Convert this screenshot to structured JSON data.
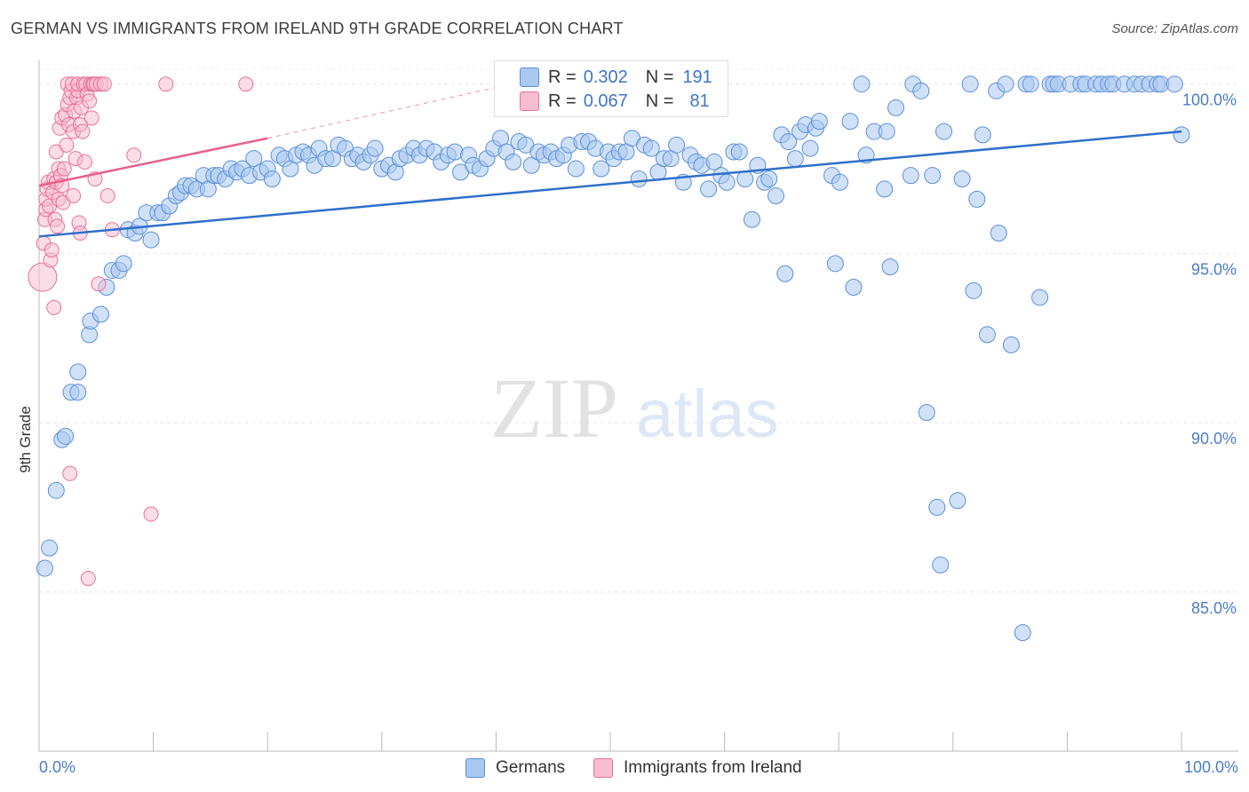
{
  "header": {
    "title": "GERMAN VS IMMIGRANTS FROM IRELAND 9TH GRADE CORRELATION CHART",
    "source": "Source: ZipAtlas.com"
  },
  "legend": {
    "german": {
      "r_label": "R =",
      "r_value": "0.302",
      "n_label": "N =",
      "n_value": "191",
      "name": "Germans"
    },
    "ireland": {
      "r_label": "R =",
      "r_value": "0.067",
      "n_label": "N =",
      "n_value": "81",
      "name": "Immigrants from Ireland"
    }
  },
  "watermark": {
    "zip": "ZIP",
    "atlas": "atlas"
  },
  "colors": {
    "blue": "#5b8fd9",
    "blue_fill": "#aac8f0",
    "pink": "#e8719a",
    "pink_fill": "#f6bcd0",
    "trend_blue": "#2e6fcc",
    "trend_pink": "#e8608a",
    "tick_text": "#4a7cc9"
  },
  "chart_data": {
    "type": "scatter",
    "title": "GERMAN VS IMMIGRANTS FROM IRELAND 9TH GRADE CORRELATION CHART",
    "xlabel": "",
    "ylabel": "9th Grade",
    "xlim": [
      0,
      100
    ],
    "ylim": [
      80.3,
      100.7
    ],
    "x_tick_labels": [
      "0.0%",
      "100.0%"
    ],
    "y_tick_labels": [
      {
        "value": 100,
        "label": "100.0%"
      },
      {
        "value": 95,
        "label": "95.0%"
      },
      {
        "value": 90,
        "label": "90.0%"
      },
      {
        "value": 85,
        "label": "85.0%"
      }
    ],
    "grid": true,
    "series": [
      {
        "name": "Germans",
        "trend": {
          "x": [
            0,
            100
          ],
          "y": [
            95.5,
            98.6
          ]
        },
        "points": [
          [
            0.5,
            85.7
          ],
          [
            0.9,
            86.3
          ],
          [
            1.5,
            88.0
          ],
          [
            2.0,
            89.5
          ],
          [
            2.3,
            89.6
          ],
          [
            2.8,
            90.9
          ],
          [
            3.4,
            90.9
          ],
          [
            3.4,
            91.5
          ],
          [
            4.4,
            92.6
          ],
          [
            4.5,
            93.0
          ],
          [
            5.4,
            93.2
          ],
          [
            5.9,
            94.0
          ],
          [
            6.4,
            94.5
          ],
          [
            7.0,
            94.5
          ],
          [
            7.4,
            94.7
          ],
          [
            7.8,
            95.7
          ],
          [
            8.4,
            95.6
          ],
          [
            8.8,
            95.8
          ],
          [
            9.4,
            96.2
          ],
          [
            9.8,
            95.4
          ],
          [
            10.4,
            96.2
          ],
          [
            10.8,
            96.2
          ],
          [
            11.4,
            96.4
          ],
          [
            12.0,
            96.7
          ],
          [
            12.4,
            96.8
          ],
          [
            12.8,
            97.0
          ],
          [
            13.3,
            97.0
          ],
          [
            13.8,
            96.9
          ],
          [
            14.4,
            97.3
          ],
          [
            14.8,
            96.9
          ],
          [
            15.3,
            97.3
          ],
          [
            15.7,
            97.3
          ],
          [
            16.3,
            97.2
          ],
          [
            16.8,
            97.5
          ],
          [
            17.3,
            97.4
          ],
          [
            17.8,
            97.5
          ],
          [
            18.4,
            97.3
          ],
          [
            18.8,
            97.8
          ],
          [
            19.4,
            97.4
          ],
          [
            20.0,
            97.5
          ],
          [
            20.4,
            97.2
          ],
          [
            21.0,
            97.9
          ],
          [
            21.5,
            97.8
          ],
          [
            22.0,
            97.5
          ],
          [
            22.5,
            97.9
          ],
          [
            23.1,
            98.0
          ],
          [
            23.6,
            97.9
          ],
          [
            24.1,
            97.6
          ],
          [
            24.5,
            98.1
          ],
          [
            25.1,
            97.8
          ],
          [
            25.7,
            97.8
          ],
          [
            26.2,
            98.2
          ],
          [
            26.8,
            98.1
          ],
          [
            27.4,
            97.8
          ],
          [
            27.9,
            97.9
          ],
          [
            28.4,
            97.7
          ],
          [
            29.0,
            97.9
          ],
          [
            29.4,
            98.1
          ],
          [
            30.0,
            97.5
          ],
          [
            30.6,
            97.6
          ],
          [
            31.2,
            97.4
          ],
          [
            31.6,
            97.8
          ],
          [
            32.2,
            97.9
          ],
          [
            32.8,
            98.1
          ],
          [
            33.3,
            97.9
          ],
          [
            33.9,
            98.1
          ],
          [
            34.6,
            98.0
          ],
          [
            35.2,
            97.7
          ],
          [
            35.8,
            97.9
          ],
          [
            36.4,
            98.0
          ],
          [
            36.9,
            97.4
          ],
          [
            37.6,
            97.9
          ],
          [
            38.0,
            97.6
          ],
          [
            38.6,
            97.5
          ],
          [
            39.2,
            97.8
          ],
          [
            39.8,
            98.1
          ],
          [
            40.4,
            98.4
          ],
          [
            40.9,
            98.0
          ],
          [
            41.5,
            97.7
          ],
          [
            42.0,
            98.3
          ],
          [
            42.6,
            98.2
          ],
          [
            43.1,
            97.6
          ],
          [
            43.7,
            98.0
          ],
          [
            44.2,
            97.9
          ],
          [
            44.8,
            98.0
          ],
          [
            45.3,
            97.8
          ],
          [
            45.9,
            97.9
          ],
          [
            46.4,
            98.2
          ],
          [
            47.0,
            97.5
          ],
          [
            47.5,
            98.3
          ],
          [
            48.1,
            98.3
          ],
          [
            48.7,
            98.1
          ],
          [
            49.2,
            97.5
          ],
          [
            49.8,
            98.0
          ],
          [
            50.3,
            97.8
          ],
          [
            50.8,
            98.0
          ],
          [
            51.4,
            98.0
          ],
          [
            51.9,
            98.4
          ],
          [
            52.5,
            97.2
          ],
          [
            53.0,
            98.2
          ],
          [
            53.6,
            98.1
          ],
          [
            54.2,
            97.4
          ],
          [
            54.7,
            97.8
          ],
          [
            55.3,
            97.8
          ],
          [
            55.8,
            98.2
          ],
          [
            56.4,
            97.1
          ],
          [
            57.0,
            97.9
          ],
          [
            57.5,
            97.7
          ],
          [
            58.0,
            97.6
          ],
          [
            58.6,
            96.9
          ],
          [
            59.1,
            97.7
          ],
          [
            59.7,
            97.3
          ],
          [
            60.2,
            97.1
          ],
          [
            60.8,
            98.0
          ],
          [
            61.3,
            98.0
          ],
          [
            61.8,
            97.2
          ],
          [
            62.4,
            96.0
          ],
          [
            62.9,
            97.6
          ],
          [
            63.5,
            97.1
          ],
          [
            63.9,
            97.2
          ],
          [
            64.5,
            96.7
          ],
          [
            65.0,
            98.5
          ],
          [
            65.3,
            94.4
          ],
          [
            65.6,
            98.3
          ],
          [
            66.2,
            97.8
          ],
          [
            66.6,
            98.6
          ],
          [
            67.1,
            98.8
          ],
          [
            67.5,
            98.1
          ],
          [
            68.0,
            98.7
          ],
          [
            68.3,
            98.9
          ],
          [
            69.4,
            97.3
          ],
          [
            69.7,
            94.7
          ],
          [
            70.1,
            97.1
          ],
          [
            71.0,
            98.9
          ],
          [
            71.3,
            94.0
          ],
          [
            72.0,
            100.0
          ],
          [
            72.4,
            97.9
          ],
          [
            73.1,
            98.6
          ],
          [
            74.0,
            96.9
          ],
          [
            74.2,
            98.6
          ],
          [
            74.5,
            94.6
          ],
          [
            75.0,
            99.3
          ],
          [
            76.3,
            97.3
          ],
          [
            76.5,
            100.0
          ],
          [
            77.2,
            99.8
          ],
          [
            77.7,
            90.3
          ],
          [
            78.2,
            97.3
          ],
          [
            78.6,
            87.5
          ],
          [
            78.9,
            85.8
          ],
          [
            79.2,
            98.6
          ],
          [
            80.4,
            87.7
          ],
          [
            80.8,
            97.2
          ],
          [
            81.5,
            100.0
          ],
          [
            81.8,
            93.9
          ],
          [
            82.1,
            96.6
          ],
          [
            82.6,
            98.5
          ],
          [
            83.0,
            92.6
          ],
          [
            83.8,
            99.8
          ],
          [
            84.0,
            95.6
          ],
          [
            84.6,
            100.0
          ],
          [
            85.1,
            92.3
          ],
          [
            86.1,
            83.8
          ],
          [
            86.4,
            100.0
          ],
          [
            86.8,
            100.0
          ],
          [
            87.6,
            93.7
          ],
          [
            88.5,
            100.0
          ],
          [
            88.8,
            100.0
          ],
          [
            89.2,
            100.0
          ],
          [
            90.3,
            100.0
          ],
          [
            91.2,
            100.0
          ],
          [
            91.6,
            100.0
          ],
          [
            92.5,
            100.0
          ],
          [
            93.0,
            100.0
          ],
          [
            93.6,
            100.0
          ],
          [
            94.0,
            100.0
          ],
          [
            95.0,
            100.0
          ],
          [
            95.9,
            100.0
          ],
          [
            96.5,
            100.0
          ],
          [
            97.2,
            100.0
          ],
          [
            97.9,
            100.0
          ],
          [
            98.2,
            100.0
          ],
          [
            99.4,
            100.0
          ],
          [
            100.0,
            98.5
          ]
        ]
      },
      {
        "name": "Immigrants from Ireland",
        "trend": {
          "x": [
            0,
            20
          ],
          "y": [
            97.0,
            98.4
          ]
        },
        "trend_extension": {
          "x": [
            20,
            40
          ],
          "y": [
            98.4,
            99.9
          ]
        },
        "points": [
          [
            0.3,
            94.3
          ],
          [
            0.4,
            95.3
          ],
          [
            0.5,
            96.0
          ],
          [
            0.6,
            96.3
          ],
          [
            0.6,
            96.6
          ],
          [
            0.7,
            96.9
          ],
          [
            0.8,
            97.1
          ],
          [
            0.9,
            96.4
          ],
          [
            1.0,
            94.8
          ],
          [
            1.1,
            95.1
          ],
          [
            1.2,
            96.8
          ],
          [
            1.3,
            93.4
          ],
          [
            1.3,
            97.2
          ],
          [
            1.4,
            96.0
          ],
          [
            1.5,
            97.1
          ],
          [
            1.5,
            98.0
          ],
          [
            1.6,
            95.8
          ],
          [
            1.7,
            97.5
          ],
          [
            1.7,
            96.6
          ],
          [
            1.8,
            98.7
          ],
          [
            1.9,
            97.3
          ],
          [
            2.0,
            97.0
          ],
          [
            2.0,
            99.0
          ],
          [
            2.1,
            96.5
          ],
          [
            2.2,
            97.5
          ],
          [
            2.3,
            99.1
          ],
          [
            2.4,
            98.2
          ],
          [
            2.5,
            99.4
          ],
          [
            2.5,
            100.0
          ],
          [
            2.6,
            98.8
          ],
          [
            2.7,
            99.6
          ],
          [
            2.7,
            88.5
          ],
          [
            2.8,
            99.8
          ],
          [
            2.9,
            100.0
          ],
          [
            3.0,
            96.7
          ],
          [
            3.0,
            98.6
          ],
          [
            3.1,
            99.2
          ],
          [
            3.2,
            97.8
          ],
          [
            3.3,
            99.6
          ],
          [
            3.4,
            99.8
          ],
          [
            3.4,
            100.0
          ],
          [
            3.5,
            95.9
          ],
          [
            3.6,
            98.8
          ],
          [
            3.6,
            95.6
          ],
          [
            3.7,
            99.3
          ],
          [
            3.8,
            98.6
          ],
          [
            3.9,
            100.0
          ],
          [
            4.0,
            97.7
          ],
          [
            4.1,
            100.0
          ],
          [
            4.2,
            99.7
          ],
          [
            4.3,
            85.4
          ],
          [
            4.4,
            99.5
          ],
          [
            4.5,
            100.0
          ],
          [
            4.6,
            99.0
          ],
          [
            4.7,
            100.0
          ],
          [
            4.8,
            100.0
          ],
          [
            4.9,
            97.2
          ],
          [
            5.0,
            100.0
          ],
          [
            5.2,
            94.1
          ],
          [
            5.4,
            100.0
          ],
          [
            5.7,
            100.0
          ],
          [
            6.0,
            96.7
          ],
          [
            6.4,
            95.7
          ],
          [
            8.3,
            97.9
          ],
          [
            9.8,
            87.3
          ],
          [
            11.1,
            100.0
          ],
          [
            18.1,
            100.0
          ]
        ]
      }
    ]
  }
}
